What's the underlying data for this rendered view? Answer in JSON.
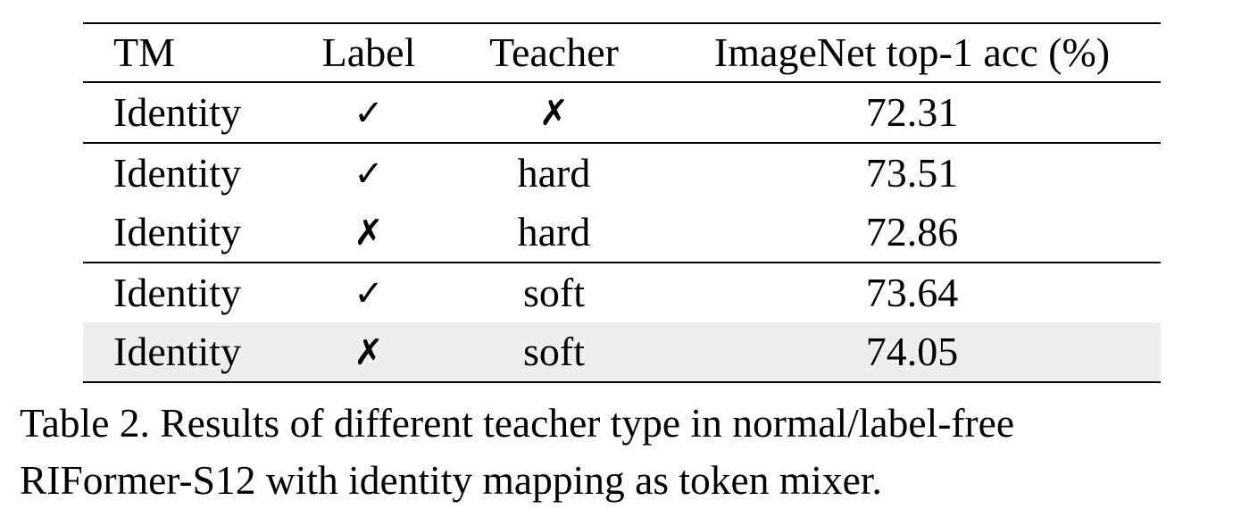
{
  "table": {
    "headers": [
      "TM",
      "Label",
      "Teacher",
      "ImageNet top-1 acc (%)"
    ],
    "rows": [
      {
        "tm": "Identity",
        "label": "✓",
        "teacher": "✗",
        "acc": "72.31"
      },
      {
        "tm": "Identity",
        "label": "✓",
        "teacher": "hard",
        "acc": "73.51"
      },
      {
        "tm": "Identity",
        "label": "✗",
        "teacher": "hard",
        "acc": "72.86"
      },
      {
        "tm": "Identity",
        "label": "✓",
        "teacher": "soft",
        "acc": "73.64"
      },
      {
        "tm": "Identity",
        "label": "✗",
        "teacher": "soft",
        "acc": "74.05"
      }
    ],
    "highlight_color": "#eeeeee"
  },
  "caption": {
    "line1": "Table 2.  Results of different teacher type in normal/label-free",
    "line2": "RIFormer-S12 with identity mapping as token mixer."
  }
}
